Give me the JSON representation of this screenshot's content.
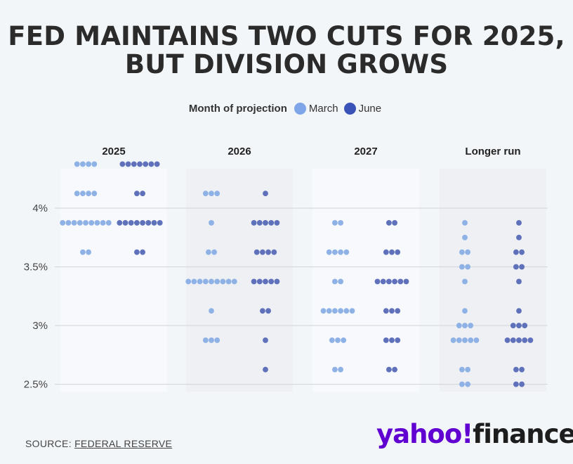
{
  "title_line1": "FED MAINTAINS TWO CUTS FOR 2025,",
  "title_line2": "BUT DIVISION GROWS",
  "legend": {
    "title": "Month of projection",
    "items": [
      {
        "label": "March",
        "color": "#7ea6e8"
      },
      {
        "label": "June",
        "color": "#3a53b8"
      }
    ]
  },
  "source_prefix": "SOURCE: ",
  "source_link": "FEDERAL RESERVE",
  "logo": {
    "yahoo": "yahoo!",
    "finance": "finance"
  },
  "chart_data": {
    "type": "scatter",
    "subtype": "dot plot",
    "ylabel_ticks": [
      "4%",
      "3.5%",
      "3%",
      "2.5%"
    ],
    "y_ticks": [
      4.0,
      3.5,
      3.0,
      2.5
    ],
    "ylim": [
      2.4375,
      4.4375
    ],
    "grid": true,
    "legend_position": "top-center",
    "colors": {
      "March": "#8fb2e6",
      "June": "#5f71bb"
    },
    "panels": [
      {
        "label": "2025",
        "March": [
          {
            "y": 4.375,
            "n": 4
          },
          {
            "y": 4.125,
            "n": 4
          },
          {
            "y": 3.875,
            "n": 9
          },
          {
            "y": 3.625,
            "n": 2
          }
        ],
        "June": [
          {
            "y": 4.375,
            "n": 7
          },
          {
            "y": 4.125,
            "n": 2
          },
          {
            "y": 3.875,
            "n": 8
          },
          {
            "y": 3.625,
            "n": 2
          }
        ]
      },
      {
        "label": "2026",
        "March": [
          {
            "y": 4.125,
            "n": 3
          },
          {
            "y": 3.875,
            "n": 1
          },
          {
            "y": 3.625,
            "n": 2
          },
          {
            "y": 3.375,
            "n": 9
          },
          {
            "y": 3.125,
            "n": 1
          },
          {
            "y": 2.875,
            "n": 3
          }
        ],
        "June": [
          {
            "y": 4.125,
            "n": 1
          },
          {
            "y": 3.875,
            "n": 5
          },
          {
            "y": 3.625,
            "n": 4
          },
          {
            "y": 3.375,
            "n": 5
          },
          {
            "y": 3.125,
            "n": 2
          },
          {
            "y": 2.875,
            "n": 1
          },
          {
            "y": 2.625,
            "n": 1
          }
        ]
      },
      {
        "label": "2027",
        "March": [
          {
            "y": 3.875,
            "n": 2
          },
          {
            "y": 3.625,
            "n": 4
          },
          {
            "y": 3.375,
            "n": 2
          },
          {
            "y": 3.125,
            "n": 6
          },
          {
            "y": 2.875,
            "n": 3
          },
          {
            "y": 2.625,
            "n": 2
          }
        ],
        "June": [
          {
            "y": 3.875,
            "n": 2
          },
          {
            "y": 3.625,
            "n": 3
          },
          {
            "y": 3.375,
            "n": 6
          },
          {
            "y": 3.125,
            "n": 3
          },
          {
            "y": 2.875,
            "n": 3
          },
          {
            "y": 2.625,
            "n": 2
          }
        ]
      },
      {
        "label": "Longer run",
        "March": [
          {
            "y": 3.875,
            "n": 1
          },
          {
            "y": 3.75,
            "n": 1
          },
          {
            "y": 3.625,
            "n": 2
          },
          {
            "y": 3.5,
            "n": 2
          },
          {
            "y": 3.375,
            "n": 1
          },
          {
            "y": 3.125,
            "n": 1
          },
          {
            "y": 3.0,
            "n": 3
          },
          {
            "y": 2.875,
            "n": 5
          },
          {
            "y": 2.625,
            "n": 2
          },
          {
            "y": 2.5,
            "n": 2
          }
        ],
        "June": [
          {
            "y": 3.875,
            "n": 1
          },
          {
            "y": 3.75,
            "n": 1
          },
          {
            "y": 3.625,
            "n": 2
          },
          {
            "y": 3.5,
            "n": 2
          },
          {
            "y": 3.375,
            "n": 1
          },
          {
            "y": 3.125,
            "n": 1
          },
          {
            "y": 3.0,
            "n": 3
          },
          {
            "y": 2.875,
            "n": 5
          },
          {
            "y": 2.625,
            "n": 2
          },
          {
            "y": 2.5,
            "n": 2
          }
        ]
      }
    ]
  }
}
